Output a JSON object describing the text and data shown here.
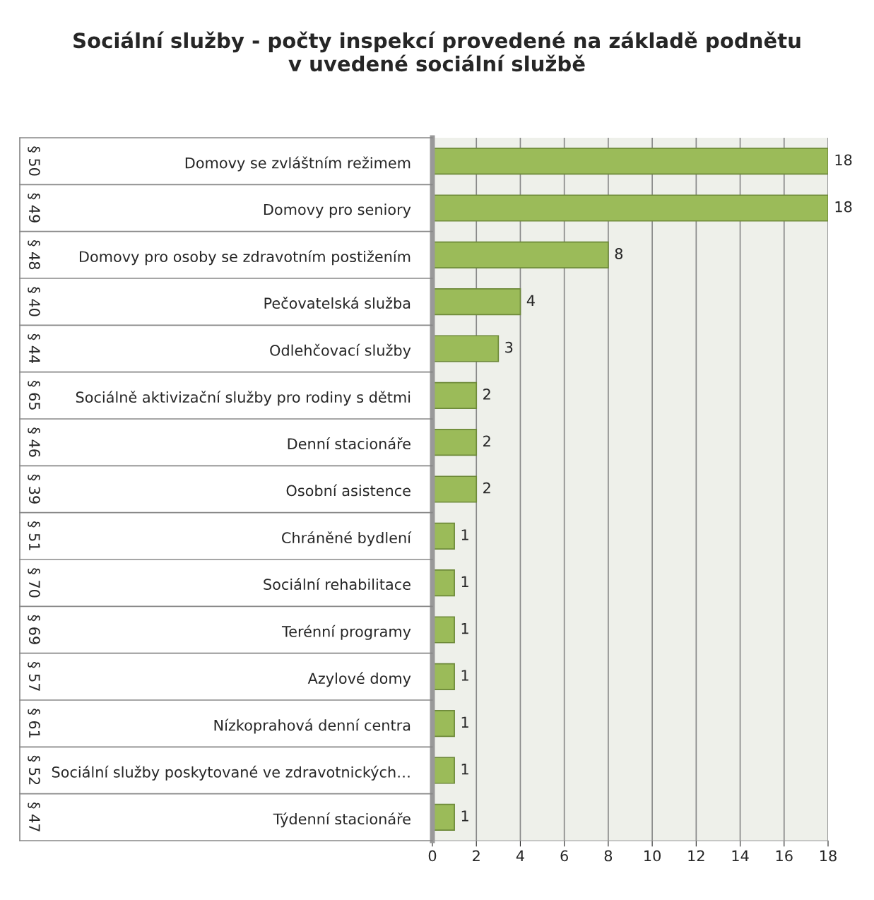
{
  "chart_data": {
    "type": "bar",
    "orientation": "horizontal",
    "title": "Sociální služby - počty inspekcí provedené na základě podnětu\nv uvedené sociální službě",
    "categories": [
      "Domovy se zvláštním režimem",
      "Domovy pro seniory",
      "Domovy pro osoby se zdravotním postižením",
      "Pečovatelská služba",
      "Odlehčovací služby",
      "Sociálně aktivizační služby pro rodiny s dětmi",
      "Denní stacionáře",
      "Osobní asistence",
      "Chráněné bydlení",
      "Sociální rehabilitace",
      "Terénní programy",
      "Azylové domy",
      "Nízkoprahová denní centra",
      "Sociální služby poskytované ve zdravotnických…",
      "Týdenní stacionáře"
    ],
    "annotations": [
      "§ 50",
      "§ 49",
      "§ 48",
      "§ 40",
      "§ 44",
      "§ 65",
      "§ 46",
      "§ 39",
      "§ 51",
      "§ 70",
      "§ 69",
      "§ 57",
      "§ 61",
      "§ 52",
      "§ 47"
    ],
    "values": [
      18,
      18,
      8,
      4,
      3,
      2,
      2,
      2,
      1,
      1,
      1,
      1,
      1,
      1,
      1
    ],
    "color": "#9bbb59",
    "xlim": [
      0,
      18
    ],
    "xticks": [
      0,
      2,
      4,
      6,
      8,
      10,
      12,
      14,
      16,
      18
    ],
    "grid": "x",
    "data_labels": true,
    "legend": false
  }
}
